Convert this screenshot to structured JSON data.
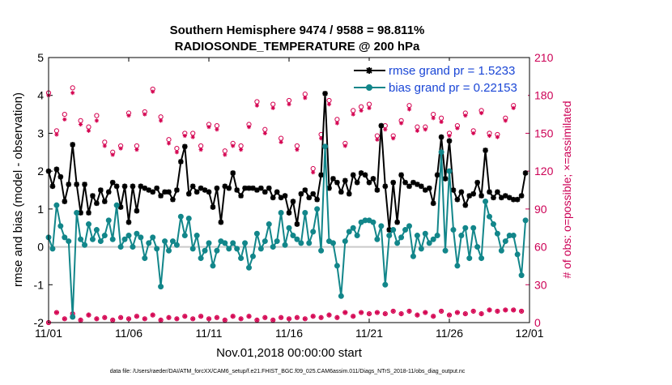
{
  "chart_data": {
    "type": "line",
    "title": "Southern Hemisphere 9474 / 9588 = 98.811%",
    "subtitle": "RADIOSONDE_TEMPERATURE @ 200 hPa",
    "xlabel": "Nov.01,2018 00:00:00 start",
    "ylabel": "rmse and bias (model - observation)",
    "y2label": "# of obs: o=possible; ×=assimilated",
    "footnote": "data file: /Users/raeder/DAI/ATM_forcXX/CAM6_setup/f.e21.FHIST_BGC.f09_025.CAM6assim.011/Diags_NTrS_2018-11/obs_diag_output.nc",
    "xlim": [
      0,
      30
    ],
    "ylim": [
      -2,
      5
    ],
    "y2lim": [
      0,
      210
    ],
    "x_ticks": [
      0,
      5,
      10,
      15,
      20,
      25,
      30
    ],
    "x_tick_labels": [
      "11/01",
      "11/06",
      "11/11",
      "11/16",
      "11/21",
      "11/26",
      "12/01"
    ],
    "y_ticks": [
      -2,
      -1,
      0,
      1,
      2,
      3,
      4,
      5
    ],
    "y_tick_labels": [
      "-2",
      "-1",
      "0",
      "1",
      "2",
      "3",
      "4",
      "5"
    ],
    "y2_ticks": [
      0,
      30,
      60,
      90,
      120,
      150,
      180,
      210
    ],
    "y2_tick_labels": [
      "0",
      "30",
      "60",
      "90",
      "120",
      "150",
      "180",
      "210"
    ],
    "zero_line": 0,
    "colors": {
      "rmse": "#000000",
      "bias": "#12868a",
      "obs": "#d4004f",
      "zero": "#c9c9c9",
      "legend_text": "#1a46d6"
    },
    "series": [
      {
        "name": "rmse grand pr = 1.5233",
        "x": [
          0.0,
          0.25,
          0.5,
          0.75,
          1.0,
          1.25,
          1.5,
          1.75,
          2.0,
          2.25,
          2.5,
          2.75,
          3.0,
          3.25,
          3.5,
          3.75,
          4.0,
          4.25,
          4.5,
          4.75,
          5.0,
          5.25,
          5.5,
          5.75,
          6.0,
          6.25,
          6.5,
          6.75,
          7.0,
          7.25,
          7.5,
          7.75,
          8.0,
          8.25,
          8.5,
          8.75,
          9.0,
          9.25,
          9.5,
          9.75,
          10.0,
          10.25,
          10.5,
          10.75,
          11.0,
          11.25,
          11.5,
          11.75,
          12.0,
          12.25,
          12.5,
          12.75,
          13.0,
          13.25,
          13.5,
          13.75,
          14.0,
          14.25,
          14.5,
          14.75,
          15.0,
          15.25,
          15.5,
          15.75,
          16.0,
          16.25,
          16.5,
          16.75,
          17.0,
          17.25,
          17.5,
          17.75,
          18.0,
          18.25,
          18.5,
          18.75,
          19.0,
          19.25,
          19.5,
          19.75,
          20.0,
          20.25,
          20.5,
          20.75,
          21.0,
          21.25,
          21.5,
          21.75,
          22.0,
          22.25,
          22.5,
          22.75,
          23.0,
          23.25,
          23.5,
          23.75,
          24.0,
          24.25,
          24.5,
          24.75,
          25.0,
          25.25,
          25.5,
          25.75,
          26.0,
          26.25,
          26.5,
          26.75,
          27.0,
          27.25,
          27.5,
          27.75,
          28.0,
          28.25,
          28.5,
          28.75,
          29.0,
          29.25,
          29.5,
          29.75
        ],
        "values": [
          2.0,
          1.6,
          2.05,
          1.85,
          1.2,
          1.65,
          2.7,
          1.65,
          0.9,
          1.65,
          0.9,
          1.35,
          1.15,
          1.5,
          1.2,
          1.45,
          1.7,
          1.6,
          1.05,
          1.6,
          0.65,
          1.6,
          0.95,
          1.6,
          1.55,
          1.5,
          1.45,
          1.55,
          1.35,
          1.45,
          1.45,
          1.25,
          1.5,
          2.25,
          2.65,
          1.4,
          1.6,
          1.45,
          1.55,
          1.5,
          1.45,
          1.05,
          1.55,
          0.65,
          1.6,
          1.55,
          1.95,
          1.5,
          1.35,
          1.55,
          1.55,
          1.55,
          1.5,
          1.55,
          1.45,
          1.55,
          1.3,
          1.45,
          1.3,
          1.35,
          0.9,
          1.2,
          0.6,
          1.4,
          1.5,
          1.3,
          1.4,
          1.25,
          1.9,
          4.05,
          1.55,
          1.8,
          1.7,
          1.45,
          1.75,
          1.4,
          1.9,
          1.7,
          1.95,
          1.9,
          1.7,
          1.8,
          1.5,
          3.2,
          1.6,
          0.45,
          1.7,
          0.65,
          1.9,
          1.7,
          1.6,
          1.7,
          1.65,
          1.6,
          1.5,
          1.55,
          1.15,
          1.9,
          2.9,
          1.8,
          2.8,
          1.5,
          1.25,
          1.45,
          1.1,
          1.35,
          1.4,
          1.7,
          1.35,
          2.55,
          1.45,
          1.3,
          1.45,
          1.3,
          1.35,
          1.3,
          1.25,
          1.25,
          1.35,
          1.95
        ]
      },
      {
        "name": "bias grand pr = 0.22153",
        "x": [
          0.0,
          0.25,
          0.5,
          0.75,
          1.0,
          1.25,
          1.5,
          1.75,
          2.0,
          2.25,
          2.5,
          2.75,
          3.0,
          3.25,
          3.5,
          3.75,
          4.0,
          4.25,
          4.5,
          4.75,
          5.0,
          5.25,
          5.5,
          5.75,
          6.0,
          6.25,
          6.5,
          6.75,
          7.0,
          7.25,
          7.5,
          7.75,
          8.0,
          8.25,
          8.5,
          8.75,
          9.0,
          9.25,
          9.5,
          9.75,
          10.0,
          10.25,
          10.5,
          10.75,
          11.0,
          11.25,
          11.5,
          11.75,
          12.0,
          12.25,
          12.5,
          12.75,
          13.0,
          13.25,
          13.5,
          13.75,
          14.0,
          14.25,
          14.5,
          14.75,
          15.0,
          15.25,
          15.5,
          15.75,
          16.0,
          16.25,
          16.5,
          16.75,
          17.0,
          17.25,
          17.5,
          17.75,
          18.0,
          18.25,
          18.5,
          18.75,
          19.0,
          19.25,
          19.5,
          19.75,
          20.0,
          20.25,
          20.5,
          20.75,
          21.0,
          21.25,
          21.5,
          21.75,
          22.0,
          22.25,
          22.5,
          22.75,
          23.0,
          23.25,
          23.5,
          23.75,
          24.0,
          24.25,
          24.5,
          24.75,
          25.0,
          25.25,
          25.5,
          25.75,
          26.0,
          26.25,
          26.5,
          26.75,
          27.0,
          27.25,
          27.5,
          27.75,
          28.0,
          28.25,
          28.5,
          28.75,
          29.0,
          29.25,
          29.5,
          29.75
        ],
        "values": [
          0.25,
          -0.05,
          1.1,
          0.55,
          0.25,
          0.15,
          -1.85,
          0.9,
          0.2,
          0.05,
          0.6,
          0.2,
          0.45,
          0.15,
          0.3,
          0.7,
          0.2,
          1.1,
          0.0,
          0.2,
          0.3,
          0.0,
          0.35,
          0.25,
          -0.3,
          0.1,
          0.25,
          -0.05,
          -1.05,
          0.15,
          -0.1,
          0.15,
          0.05,
          0.8,
          0.3,
          0.75,
          -0.05,
          0.3,
          -0.3,
          -0.1,
          0.1,
          -0.5,
          -0.1,
          0.15,
          0.1,
          -0.05,
          0.1,
          -0.05,
          -0.3,
          0.1,
          -0.55,
          -0.25,
          0.35,
          -0.05,
          0.15,
          0.6,
          0.0,
          0.15,
          0.9,
          0.05,
          0.5,
          0.3,
          0.2,
          0.1,
          0.9,
          0.1,
          0.4,
          1.0,
          -0.1,
          2.65,
          0.15,
          0.1,
          -0.5,
          -1.3,
          0.15,
          0.4,
          0.5,
          0.3,
          0.65,
          0.7,
          0.7,
          0.65,
          0.2,
          0.55,
          -1.0,
          0.3,
          0.45,
          0.1,
          0.25,
          0.45,
          0.55,
          -0.25,
          0.3,
          -0.05,
          0.35,
          0.1,
          0.2,
          0.3,
          2.5,
          -0.1,
          2.0,
          0.45,
          -0.5,
          0.3,
          0.5,
          -0.3,
          0.5,
          0.0,
          -0.3,
          1.2,
          0.8,
          0.6,
          0.35,
          -0.1,
          0.15,
          0.3,
          0.3,
          -0.2,
          -0.75,
          0.7
        ]
      }
    ],
    "obs_counts": {
      "x": [
        0.0,
        0.5,
        1.0,
        1.5,
        2.0,
        2.5,
        3.0,
        3.5,
        4.0,
        4.5,
        5.0,
        5.5,
        6.0,
        6.5,
        7.0,
        7.5,
        8.0,
        8.5,
        9.0,
        9.5,
        10.0,
        10.5,
        11.0,
        11.5,
        12.0,
        12.5,
        13.0,
        13.5,
        14.0,
        14.5,
        15.0,
        15.5,
        16.0,
        16.5,
        17.0,
        17.5,
        18.0,
        18.5,
        19.0,
        19.5,
        20.0,
        20.5,
        21.0,
        21.5,
        22.0,
        22.5,
        23.0,
        23.5,
        24.0,
        24.5,
        25.0,
        25.5,
        26.0,
        26.5,
        27.0,
        27.5,
        28.0,
        28.5,
        29.0,
        29.5
      ],
      "possible_high": [
        182,
        152,
        165,
        186,
        160,
        155,
        164,
        143,
        135,
        140,
        166,
        140,
        167,
        185,
        163,
        145,
        138,
        150,
        150,
        140,
        157,
        156,
        136,
        142,
        140,
        157,
        175,
        153,
        173,
        146,
        176,
        140,
        181,
        122,
        149,
        176,
        161,
        142,
        168,
        171,
        173,
        148,
        156,
        148,
        160,
        172,
        155,
        155,
        165,
        162,
        150,
        156,
        166,
        152,
        168,
        150,
        149,
        162,
        172,
        196
      ],
      "assimilated_high": [
        180,
        149,
        161,
        182,
        157,
        152,
        160,
        140,
        133,
        138,
        164,
        137,
        165,
        183,
        160,
        142,
        135,
        148,
        147,
        137,
        155,
        153,
        133,
        140,
        137,
        155,
        172,
        150,
        170,
        143,
        173,
        137,
        178,
        119,
        146,
        173,
        158,
        140,
        165,
        168,
        170,
        145,
        153,
        146,
        158,
        169,
        152,
        153,
        162,
        159,
        148,
        154,
        164,
        150,
        166,
        148,
        147,
        160,
        170,
        193
      ],
      "possible_low": [
        0,
        8,
        3,
        7,
        2,
        6,
        3,
        4,
        2,
        4,
        3,
        5,
        3,
        6,
        2,
        4,
        3,
        5,
        3,
        5,
        3,
        4,
        2,
        5,
        3,
        5,
        2,
        4,
        2,
        4,
        3,
        4,
        3,
        5,
        4,
        6,
        4,
        8,
        5,
        8,
        7,
        8,
        7,
        9,
        7,
        9,
        6,
        8,
        5,
        9,
        6,
        8,
        7,
        9,
        7,
        10,
        9,
        10,
        10,
        9
      ],
      "assimilated_low": [
        0,
        8,
        3,
        7,
        2,
        6,
        3,
        4,
        2,
        4,
        3,
        5,
        3,
        6,
        2,
        4,
        3,
        5,
        3,
        5,
        3,
        4,
        2,
        5,
        3,
        5,
        2,
        4,
        2,
        4,
        3,
        4,
        3,
        5,
        4,
        6,
        4,
        8,
        5,
        8,
        7,
        8,
        7,
        9,
        7,
        9,
        6,
        8,
        5,
        9,
        6,
        8,
        7,
        9,
        7,
        10,
        9,
        10,
        10,
        9
      ]
    }
  }
}
